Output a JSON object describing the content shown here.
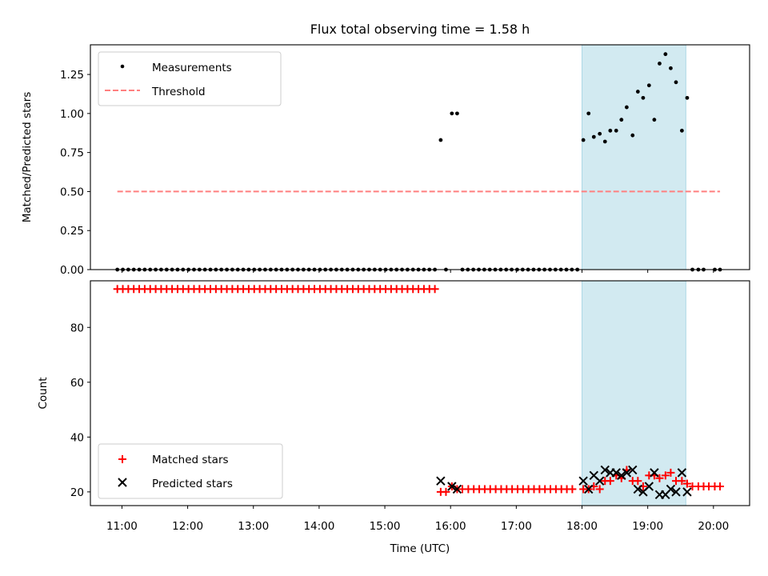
{
  "chart_data": {
    "title": "Flux total observing time = 1.58 h",
    "xlabel": "Time (UTC)",
    "xticks": [
      {
        "h": 11,
        "label": "11:00"
      },
      {
        "h": 12,
        "label": "12:00"
      },
      {
        "h": 13,
        "label": "13:00"
      },
      {
        "h": 14,
        "label": "14:00"
      },
      {
        "h": 15,
        "label": "15:00"
      },
      {
        "h": 16,
        "label": "16:00"
      },
      {
        "h": 17,
        "label": "17:00"
      },
      {
        "h": 18,
        "label": "18:00"
      },
      {
        "h": 19,
        "label": "19:00"
      },
      {
        "h": 20,
        "label": "20:00"
      }
    ],
    "xlim": [
      10.52,
      20.55
    ],
    "shaded_span": {
      "start": 18.0,
      "end": 19.58,
      "color": "#add8e6"
    },
    "panels": [
      {
        "type": "scatter",
        "ylabel": "Matched/Predicted stars",
        "ylim": [
          0,
          1.44
        ],
        "yticks": [
          {
            "v": 0.0,
            "label": "0.00"
          },
          {
            "v": 0.25,
            "label": "0.25"
          },
          {
            "v": 0.5,
            "label": "0.50"
          },
          {
            "v": 0.75,
            "label": "0.75"
          },
          {
            "v": 1.0,
            "label": "1.00"
          },
          {
            "v": 1.25,
            "label": "1.25"
          }
        ],
        "legend": {
          "placement": "upper-left",
          "entries": [
            {
              "label": "Measurements",
              "marker": "dot",
              "color": "#000000"
            },
            {
              "label": "Threshold",
              "marker": "dashed-line",
              "color": "#ff7f7f"
            }
          ]
        },
        "threshold": {
          "y": 0.5,
          "x_start": 10.93,
          "x_end": 20.1,
          "color": "#ff7f7f"
        },
        "zero_measurements": {
          "start": 10.93,
          "end": 15.78,
          "step": 0.0833,
          "color": "#000000"
        },
        "zero_measurements_late": {
          "start": 16.18,
          "end": 17.93,
          "step": 0.0833
        },
        "measurements": [
          {
            "x": 15.85,
            "y": 0.83
          },
          {
            "x": 15.93,
            "y": 0.0
          },
          {
            "x": 16.02,
            "y": 1.0
          },
          {
            "x": 16.1,
            "y": 1.0
          },
          {
            "x": 18.02,
            "y": 0.83
          },
          {
            "x": 18.1,
            "y": 1.0
          },
          {
            "x": 18.18,
            "y": 0.85
          },
          {
            "x": 18.27,
            "y": 0.87
          },
          {
            "x": 18.35,
            "y": 0.82
          },
          {
            "x": 18.43,
            "y": 0.89
          },
          {
            "x": 18.52,
            "y": 0.89
          },
          {
            "x": 18.6,
            "y": 0.96
          },
          {
            "x": 18.68,
            "y": 1.04
          },
          {
            "x": 18.77,
            "y": 0.86
          },
          {
            "x": 18.85,
            "y": 1.14
          },
          {
            "x": 18.93,
            "y": 1.1
          },
          {
            "x": 19.02,
            "y": 1.18
          },
          {
            "x": 19.1,
            "y": 0.96
          },
          {
            "x": 19.18,
            "y": 1.32
          },
          {
            "x": 19.27,
            "y": 1.38
          },
          {
            "x": 19.35,
            "y": 1.29
          },
          {
            "x": 19.43,
            "y": 1.2
          },
          {
            "x": 19.52,
            "y": 0.89
          },
          {
            "x": 19.6,
            "y": 1.1
          },
          {
            "x": 19.68,
            "y": 0.0
          },
          {
            "x": 19.77,
            "y": 0.0
          },
          {
            "x": 19.85,
            "y": 0.0
          },
          {
            "x": 20.02,
            "y": 0.0
          },
          {
            "x": 20.1,
            "y": 0.0
          }
        ]
      },
      {
        "type": "scatter",
        "ylabel": "Count",
        "ylim": [
          15,
          97
        ],
        "yticks": [
          {
            "v": 20,
            "label": "20"
          },
          {
            "v": 40,
            "label": "40"
          },
          {
            "v": 60,
            "label": "60"
          },
          {
            "v": 80,
            "label": "80"
          }
        ],
        "legend": {
          "placement": "lower-left",
          "entries": [
            {
              "label": "Matched stars",
              "marker": "plus",
              "color": "#ff0000"
            },
            {
              "label": "Predicted stars",
              "marker": "x",
              "color": "#000000"
            }
          ]
        },
        "matched_flat": {
          "start": 10.93,
          "end": 15.78,
          "step": 0.0833,
          "y": 94
        },
        "matched_flat_late": {
          "start": 16.27,
          "end": 17.93,
          "step": 0.0833,
          "y": 21
        },
        "matched": [
          {
            "x": 15.85,
            "y": 20
          },
          {
            "x": 15.93,
            "y": 20
          },
          {
            "x": 16.02,
            "y": 22
          },
          {
            "x": 16.1,
            "y": 21
          },
          {
            "x": 16.18,
            "y": 21
          },
          {
            "x": 18.02,
            "y": 21
          },
          {
            "x": 18.1,
            "y": 21
          },
          {
            "x": 18.18,
            "y": 22
          },
          {
            "x": 18.27,
            "y": 21
          },
          {
            "x": 18.35,
            "y": 24
          },
          {
            "x": 18.43,
            "y": 24
          },
          {
            "x": 18.52,
            "y": 26
          },
          {
            "x": 18.6,
            "y": 25
          },
          {
            "x": 18.68,
            "y": 28
          },
          {
            "x": 18.77,
            "y": 24
          },
          {
            "x": 18.85,
            "y": 24
          },
          {
            "x": 18.93,
            "y": 22
          },
          {
            "x": 19.02,
            "y": 26
          },
          {
            "x": 19.1,
            "y": 26
          },
          {
            "x": 19.18,
            "y": 25
          },
          {
            "x": 19.27,
            "y": 26
          },
          {
            "x": 19.35,
            "y": 27
          },
          {
            "x": 19.43,
            "y": 24
          },
          {
            "x": 19.52,
            "y": 24
          },
          {
            "x": 19.6,
            "y": 23
          },
          {
            "x": 19.68,
            "y": 22
          },
          {
            "x": 19.77,
            "y": 22
          },
          {
            "x": 19.85,
            "y": 22
          },
          {
            "x": 19.93,
            "y": 22
          },
          {
            "x": 20.02,
            "y": 22
          },
          {
            "x": 20.1,
            "y": 22
          }
        ],
        "predicted": [
          {
            "x": 15.85,
            "y": 24
          },
          {
            "x": 16.02,
            "y": 22
          },
          {
            "x": 16.1,
            "y": 21
          },
          {
            "x": 18.02,
            "y": 24
          },
          {
            "x": 18.1,
            "y": 21
          },
          {
            "x": 18.18,
            "y": 26
          },
          {
            "x": 18.27,
            "y": 24
          },
          {
            "x": 18.35,
            "y": 28
          },
          {
            "x": 18.43,
            "y": 27
          },
          {
            "x": 18.52,
            "y": 27
          },
          {
            "x": 18.6,
            "y": 26
          },
          {
            "x": 18.68,
            "y": 27
          },
          {
            "x": 18.77,
            "y": 28
          },
          {
            "x": 18.85,
            "y": 21
          },
          {
            "x": 18.93,
            "y": 20
          },
          {
            "x": 19.02,
            "y": 22
          },
          {
            "x": 19.1,
            "y": 27
          },
          {
            "x": 19.18,
            "y": 19
          },
          {
            "x": 19.27,
            "y": 19
          },
          {
            "x": 19.35,
            "y": 21
          },
          {
            "x": 19.43,
            "y": 20
          },
          {
            "x": 19.52,
            "y": 27
          },
          {
            "x": 19.6,
            "y": 20
          }
        ]
      }
    ]
  }
}
